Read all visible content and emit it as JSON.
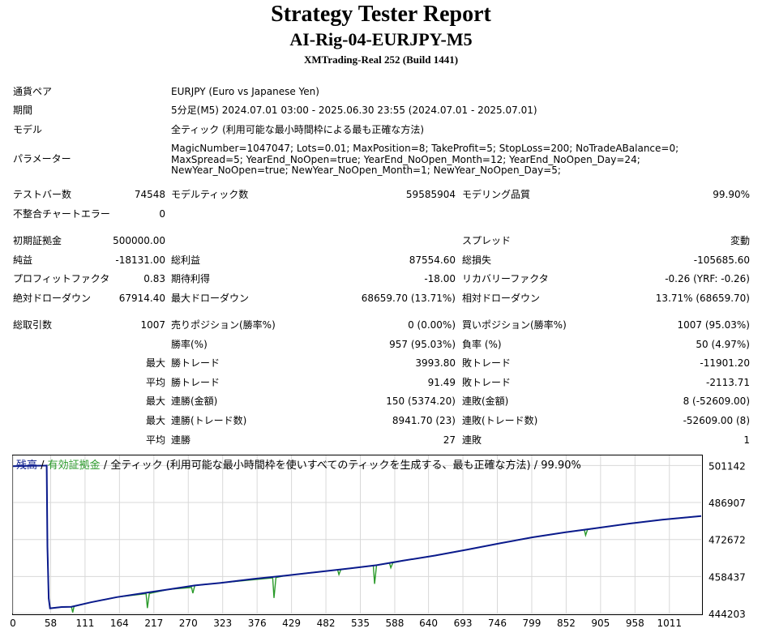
{
  "header": {
    "title": "Strategy Tester Report",
    "subtitle": "AI-Rig-04-EURJPY-M5",
    "server": "XMTrading-Real 252 (Build 1441)"
  },
  "info": {
    "symbol_label": "通貨ペア",
    "symbol_value": "EURJPY (Euro vs Japanese Yen)",
    "period_label": "期間",
    "period_value": "5分足(M5) 2024.07.01 03:00 - 2025.06.30 23:55 (2024.07.01 - 2025.07.01)",
    "model_label": "モデル",
    "model_value": "全ティック (利用可能な最小時間枠による最も正確な方法)",
    "params_label": "パラメーター",
    "params_value": "MagicNumber=1047047; Lots=0.01; MaxPosition=8; TakeProfit=5; StopLoss=200; NoTradeABalance=0; MaxSpread=5; YearEnd_NoOpen=true; YearEnd_NoOpen_Month=12; YearEnd_NoOpen_Day=24; NewYear_NoOpen=true; NewYear_NoOpen_Month=1; NewYear_NoOpen_Day=5;"
  },
  "stats": {
    "bars_label": "テストバー数",
    "bars_value": "74548",
    "ticks_label": "モデルティック数",
    "ticks_value": "59585904",
    "quality_label": "モデリング品質",
    "quality_value": "99.90%",
    "mismatch_label": "不整合チャートエラー",
    "mismatch_value": "0",
    "deposit_label": "初期証拠金",
    "deposit_value": "500000.00",
    "spread_label": "スプレッド",
    "spread_value": "変動",
    "net_label": "純益",
    "net_value": "-18131.00",
    "gross_profit_label": "総利益",
    "gross_profit_value": "87554.60",
    "gross_loss_label": "総損失",
    "gross_loss_value": "-105685.60",
    "pf_label": "プロフィットファクタ",
    "pf_value": "0.83",
    "expected_label": "期待利得",
    "expected_value": "-18.00",
    "recovery_label": "リカバリーファクタ",
    "recovery_value": "-0.26 (YRF: -0.26)",
    "abs_dd_label": "絶対ドローダウン",
    "abs_dd_value": "67914.40",
    "max_dd_label": "最大ドローダウン",
    "max_dd_value": "68659.70 (13.71%)",
    "rel_dd_label": "相対ドローダウン",
    "rel_dd_value": "13.71% (68659.70)",
    "trades_label": "総取引数",
    "trades_value": "1007",
    "short_label": "売りポジション(勝率%)",
    "short_value": "0 (0.00%)",
    "long_label": "買いポジション(勝率%)",
    "long_value": "1007 (95.03%)",
    "winrate_label": "勝率(%)",
    "winrate_value": "957 (95.03%)",
    "lossrate_label": "負率 (%)",
    "lossrate_value": "50 (4.97%)",
    "max_word": "最大",
    "avg_word": "平均",
    "largest_win_label": "勝トレード",
    "largest_win_value": "3993.80",
    "largest_loss_label": "敗トレード",
    "largest_loss_value": "-11901.20",
    "avg_win_label": "勝トレード",
    "avg_win_value": "91.49",
    "avg_loss_label": "敗トレード",
    "avg_loss_value": "-2113.71",
    "max_consec_win_label": "連勝(金額)",
    "max_consec_win_value": "150 (5374.20)",
    "max_consec_loss_label": "連敗(金額)",
    "max_consec_loss_value": "8 (-52609.00)",
    "max_consec_profit_label": "連勝(トレード数)",
    "max_consec_profit_value": "8941.70 (23)",
    "max_consec_lossamt_label": "連敗(トレード数)",
    "max_consec_lossamt_value": "-52609.00 (8)",
    "avg_consec_win_label": "連勝",
    "avg_consec_win_value": "27",
    "avg_consec_loss_label": "連敗",
    "avg_consec_loss_value": "1"
  },
  "chart_legend": {
    "balance": "残高",
    "sep1": " / ",
    "equity": "有効証拠金",
    "sep2": " / ",
    "rest": "全ティック (利用可能な最小時間枠を使いすべてのティックを生成する、最も正確な方法) / 99.90%"
  },
  "colors": {
    "balance": "#0a1a8c",
    "equity": "#2a9a2a",
    "grid": "#d8d8d8"
  },
  "chart_data": {
    "type": "line",
    "title": "",
    "xlabel": "",
    "ylabel": "",
    "xlim": [
      0,
      1060
    ],
    "ylim": [
      444203,
      505000
    ],
    "x_ticks": [
      0,
      58,
      111,
      164,
      217,
      270,
      323,
      376,
      429,
      482,
      535,
      588,
      640,
      693,
      746,
      799,
      852,
      905,
      958,
      1011
    ],
    "y_ticks": [
      501142,
      486907,
      472672,
      458437,
      444203
    ],
    "grid": true,
    "series": [
      {
        "name": "残高",
        "points": [
          [
            0,
            500900
          ],
          [
            25,
            501000
          ],
          [
            50,
            501100
          ],
          [
            52,
            501142
          ],
          [
            53,
            470000
          ],
          [
            55,
            450000
          ],
          [
            57,
            446200
          ],
          [
            75,
            446700
          ],
          [
            90,
            446800
          ],
          [
            120,
            448500
          ],
          [
            160,
            450500
          ],
          [
            200,
            452000
          ],
          [
            240,
            453500
          ],
          [
            280,
            455000
          ],
          [
            320,
            456000
          ],
          [
            370,
            457500
          ],
          [
            420,
            458800
          ],
          [
            470,
            460200
          ],
          [
            520,
            461600
          ],
          [
            560,
            462800
          ],
          [
            600,
            464500
          ],
          [
            650,
            466500
          ],
          [
            700,
            468800
          ],
          [
            750,
            471200
          ],
          [
            800,
            473500
          ],
          [
            850,
            475400
          ],
          [
            900,
            477100
          ],
          [
            950,
            478800
          ],
          [
            1000,
            480300
          ],
          [
            1060,
            481700
          ]
        ]
      },
      {
        "name": "有効証拠金",
        "points": [
          [
            0,
            500900
          ],
          [
            25,
            501000
          ],
          [
            50,
            501100
          ],
          [
            52,
            501142
          ],
          [
            53,
            470000
          ],
          [
            55,
            450000
          ],
          [
            57,
            446200
          ],
          [
            75,
            446700
          ],
          [
            90,
            446800
          ],
          [
            92,
            444600
          ],
          [
            94,
            446900
          ],
          [
            120,
            448500
          ],
          [
            160,
            450500
          ],
          [
            205,
            451800
          ],
          [
            207,
            446300
          ],
          [
            210,
            451900
          ],
          [
            240,
            453500
          ],
          [
            275,
            454200
          ],
          [
            277,
            452000
          ],
          [
            280,
            455000
          ],
          [
            320,
            456000
          ],
          [
            400,
            457900
          ],
          [
            402,
            450200
          ],
          [
            405,
            458000
          ],
          [
            420,
            458800
          ],
          [
            470,
            460200
          ],
          [
            500,
            461000
          ],
          [
            502,
            459200
          ],
          [
            505,
            461100
          ],
          [
            520,
            461600
          ],
          [
            555,
            462600
          ],
          [
            557,
            455600
          ],
          [
            560,
            462800
          ],
          [
            580,
            463600
          ],
          [
            582,
            461800
          ],
          [
            585,
            463700
          ],
          [
            600,
            464500
          ],
          [
            650,
            466500
          ],
          [
            700,
            468800
          ],
          [
            750,
            471200
          ],
          [
            800,
            473500
          ],
          [
            850,
            475400
          ],
          [
            880,
            476400
          ],
          [
            882,
            474300
          ],
          [
            885,
            476500
          ],
          [
            900,
            477100
          ],
          [
            950,
            478800
          ],
          [
            1000,
            480300
          ],
          [
            1060,
            481700
          ]
        ]
      }
    ]
  }
}
